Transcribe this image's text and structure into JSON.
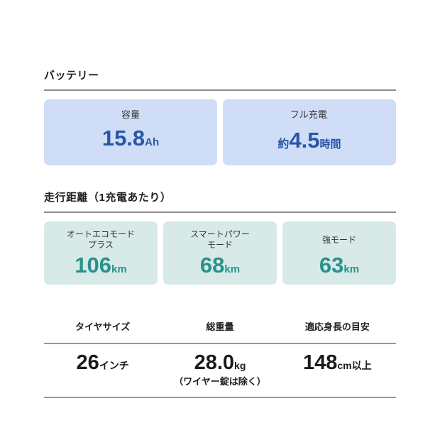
{
  "colors": {
    "page_bg": "#ffffff",
    "battery_card_bg": "#cfdef6",
    "battery_value_text": "#2b55a6",
    "range_card_bg": "#d7eae8",
    "range_value_text": "#2a9189",
    "heading_text": "#1f1f1f",
    "divider_gray": "#8e8e8e"
  },
  "battery": {
    "heading": "バッテリー",
    "cards": [
      {
        "label": "容量",
        "prefix": "",
        "number": "15.8",
        "unit": "Ah"
      },
      {
        "label": "フル充電",
        "mark": ".",
        "prefix": "約",
        "number": "4.5",
        "unit": "時間"
      }
    ]
  },
  "range": {
    "heading": "走行距離（1充電あたり）",
    "cards": [
      {
        "label": "オートエコモード\nプラス",
        "number": "106",
        "unit": "km"
      },
      {
        "label": "スマートパワー\nモード",
        "number": "68",
        "unit": "km"
      },
      {
        "label": "強モード",
        "number": "63",
        "unit": "km"
      }
    ]
  },
  "specs": {
    "columns": [
      {
        "header": "タイヤサイズ",
        "number": "26",
        "unit": "インチ",
        "note": ""
      },
      {
        "header": "総重量",
        "number": "28.0",
        "unit": "kg",
        "note": "（ワイヤー錠は除く）"
      },
      {
        "header": "適応身長の目安",
        "number": "148",
        "unit": "cm以上",
        "note": ""
      }
    ]
  }
}
